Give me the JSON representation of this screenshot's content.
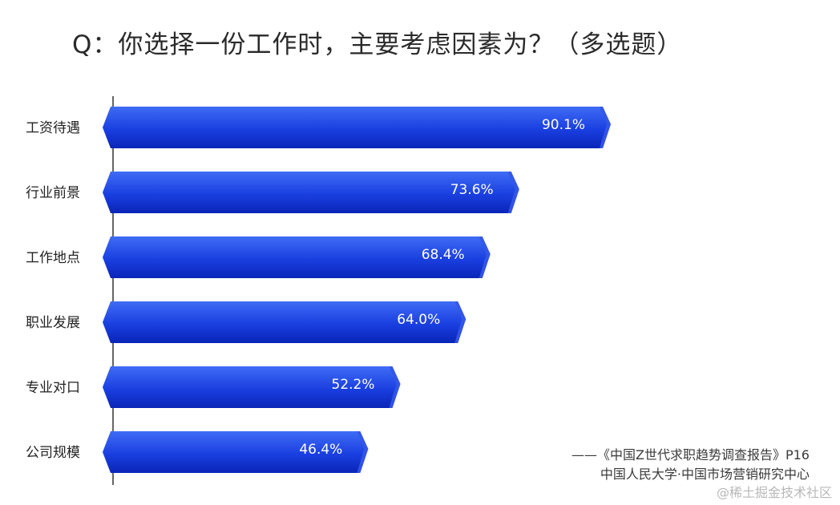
{
  "chart_data": {
    "type": "bar",
    "orientation": "horizontal",
    "title": "Q：你选择一份工作时，主要考虑因素为？（多选题）",
    "categories": [
      "工资待遇",
      "行业前景",
      "工作地点",
      "职业发展",
      "专业对口",
      "公司规模"
    ],
    "values": [
      90.1,
      73.6,
      68.4,
      64.0,
      52.2,
      46.4
    ],
    "value_labels": [
      "90.1%",
      "73.6%",
      "68.4%",
      "64.0%",
      "52.2%",
      "46.4%"
    ],
    "unit": "%",
    "xlim": [
      0,
      100
    ],
    "grid": false,
    "legend": "none",
    "colors": {
      "bar_top": "#3f6cf5",
      "bar_bottom": "#0a25b8",
      "bar_side": "#3556e8"
    }
  },
  "source": {
    "line1": "——《中国Z世代求职趋势调查报告》P16",
    "line2": "中国人民大学·中国市场营销研究中心"
  },
  "watermark": "@稀土掘金技术社区"
}
